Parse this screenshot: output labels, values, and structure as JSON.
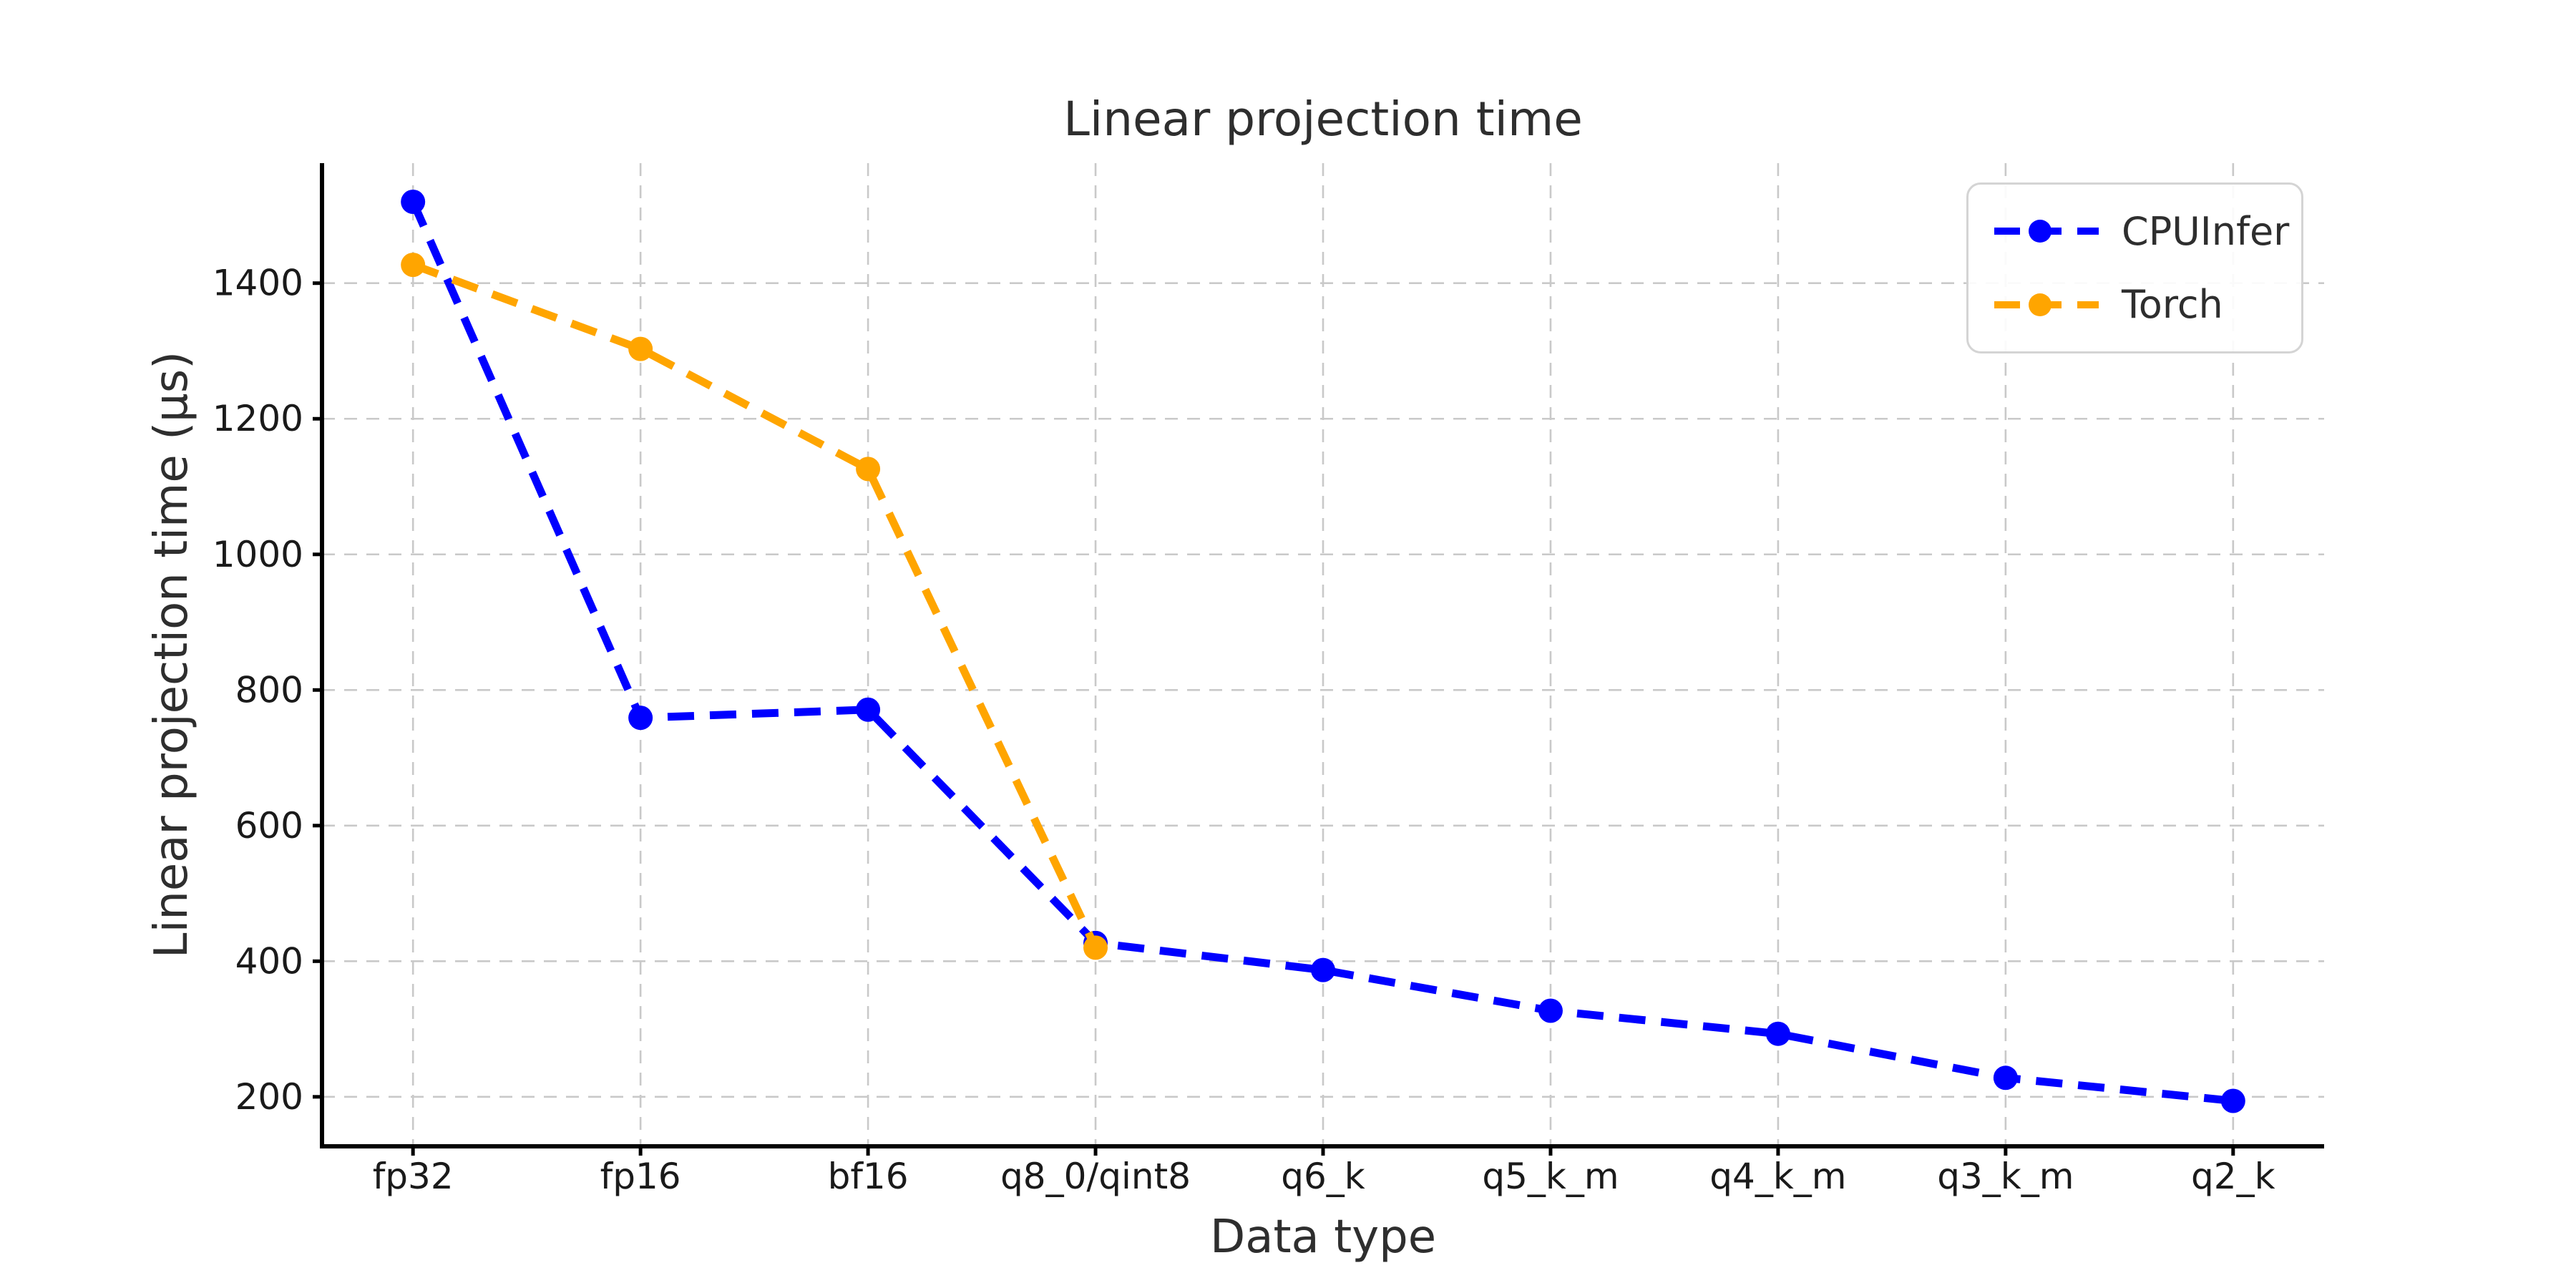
{
  "chart_data": {
    "type": "line",
    "title": "Linear projection time",
    "xlabel": "Data type",
    "ylabel": "Linear projection time (μs)",
    "categories": [
      "fp32",
      "fp16",
      "bf16",
      "q8_0/qint8",
      "q6_k",
      "q5_k_m",
      "q4_k_m",
      "q3_k_m",
      "q2_k"
    ],
    "series": [
      {
        "name": "CPUInfer",
        "color": "#0000ff",
        "values": [
          1520,
          759,
          771,
          427,
          387,
          327,
          293,
          228,
          194
        ]
      },
      {
        "name": "Torch",
        "color": "#ffa500",
        "values": [
          1427,
          1303,
          1126,
          420,
          null,
          null,
          null,
          null,
          null
        ]
      }
    ],
    "yticks": [
      200,
      400,
      600,
      800,
      1000,
      1200,
      1400
    ],
    "ylim": [
      127,
      1577
    ],
    "grid": true,
    "grid_style": "dashed",
    "line_style": "dashed",
    "marker": "circle",
    "legend_position": "upper right",
    "colors": {
      "background": "#ffffff",
      "grid": "#c9c9c9",
      "spine": "#000000",
      "tick_text": "#1a1a1a",
      "text": "#2e2e2e",
      "legend_border": "#d4d4d4"
    }
  }
}
